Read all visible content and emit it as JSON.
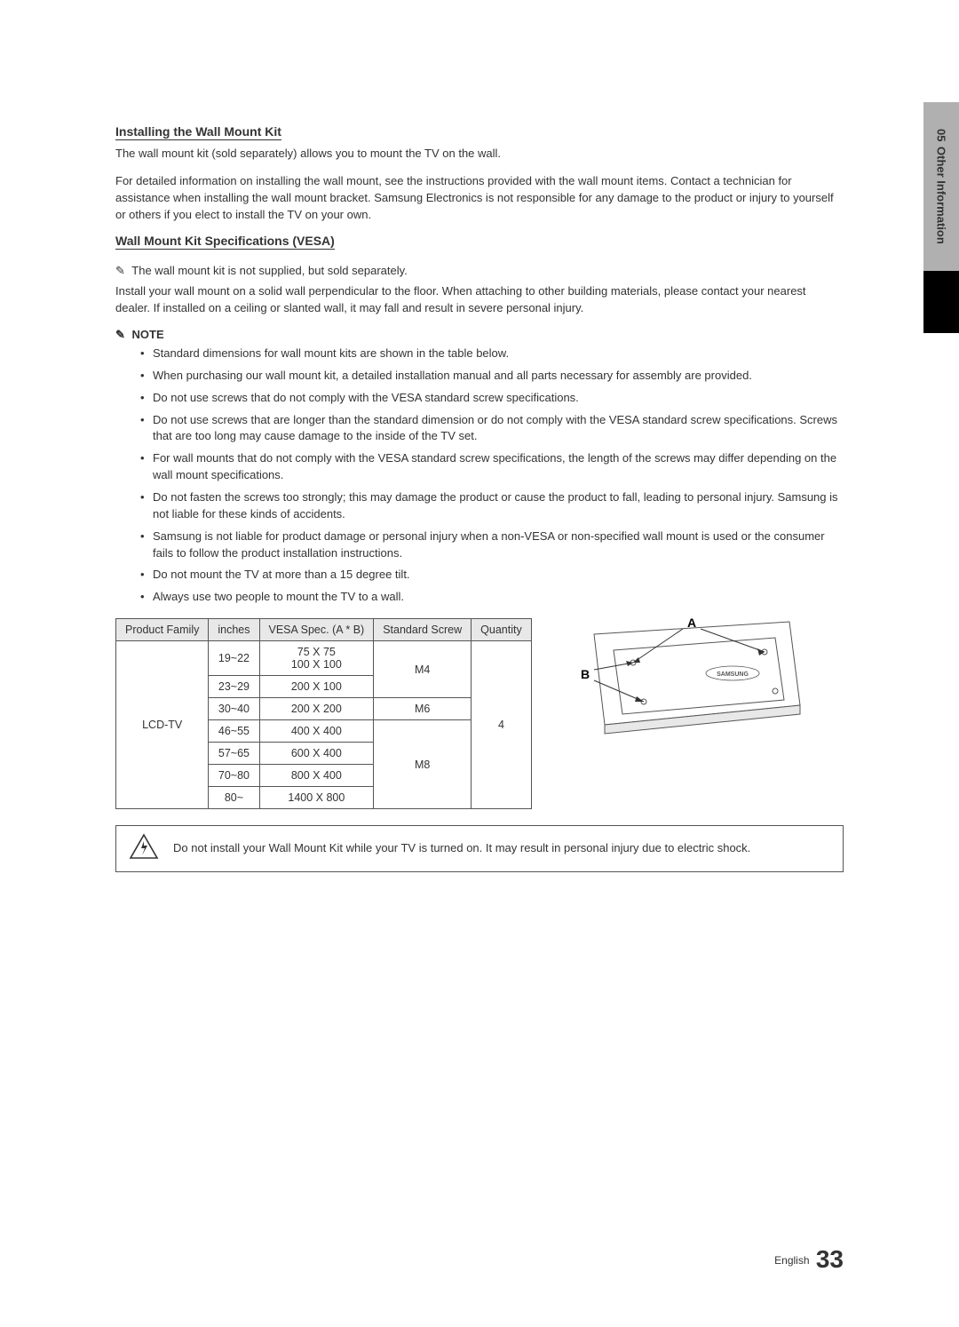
{
  "sideTab": {
    "chapter": "05",
    "label": "Other Information"
  },
  "sec1": {
    "title": "Installing the Wall Mount Kit",
    "p1": "The wall mount kit (sold separately) allows you to mount the TV on the wall.",
    "p2": "For detailed information on installing the wall mount, see the instructions provided with the wall mount items. Contact a technician for assistance when installing the wall mount bracket. Samsung Electronics is not responsible for any damage to the product or injury to yourself or others if you elect to install the TV on your own."
  },
  "sec2": {
    "title": "Wall Mount Kit Specifications (VESA)",
    "supplyNote": "The wall mount kit is not supplied, but sold separately.",
    "installNote": "Install your wall mount on a solid wall perpendicular to the floor. When attaching to other building materials, please contact your nearest dealer. If installed on a ceiling or slanted wall, it may fall and result in severe personal injury.",
    "noteHeading": "NOTE",
    "bullets": [
      "Standard dimensions for wall mount kits are shown in the table below.",
      "When purchasing our wall mount kit, a detailed installation manual and all parts necessary for assembly are provided.",
      "Do not use screws that do not comply with the VESA standard screw specifications.",
      "Do not use screws that are longer than the standard dimension or do not comply with the VESA standard screw specifications. Screws that are too long may cause damage to the inside of the TV set.",
      "For wall mounts that do not comply with the VESA standard screw specifications, the length of the screws may differ depending on the wall mount specifications.",
      "Do not fasten the screws too strongly; this may damage the product or cause the product to fall, leading to personal injury. Samsung is not liable for these kinds of accidents.",
      "Samsung is not liable for product damage or personal injury when a non-VESA or non-specified wall mount is used or the consumer fails to follow the product installation instructions.",
      "Do not mount the TV at more than a 15 degree tilt.",
      "Always use two people to mount the TV to a wall."
    ]
  },
  "table": {
    "headers": [
      "Product Family",
      "inches",
      "VESA Spec. (A * B)",
      "Standard Screw",
      "Quantity"
    ],
    "family": "LCD-TV",
    "rows": [
      {
        "inches": "19~22",
        "vesa": "75 X 75\n100 X 100"
      },
      {
        "inches": "23~29",
        "vesa": "200 X 100"
      },
      {
        "inches": "30~40",
        "vesa": "200 X 200"
      },
      {
        "inches": "46~55",
        "vesa": "400 X 400"
      },
      {
        "inches": "57~65",
        "vesa": "600 X 400"
      },
      {
        "inches": "70~80",
        "vesa": "800 X 400"
      },
      {
        "inches": "80~",
        "vesa": "1400 X 800"
      }
    ],
    "screwGroups": [
      {
        "label": "M4",
        "span": 2
      },
      {
        "label": "M6",
        "span": 1
      },
      {
        "label": "M8",
        "span": 4
      }
    ],
    "quantity": "4"
  },
  "diagram": {
    "labelA": "A",
    "labelB": "B",
    "brand": "SAMSUNG",
    "colors": {
      "stroke": "#555555",
      "fill": "#ffffff",
      "shade": "#e8e8e8"
    }
  },
  "warning": "Do not install your Wall Mount Kit while your TV is turned on. It may result in personal injury due to electric shock.",
  "footer": {
    "lang": "English",
    "page": "33"
  }
}
